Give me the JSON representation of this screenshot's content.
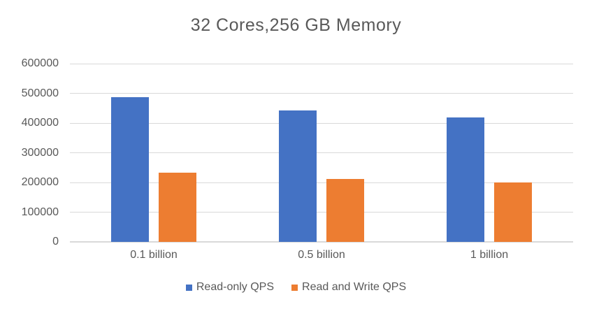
{
  "chart_data": {
    "type": "bar",
    "title": "32 Cores,256 GB Memory",
    "categories": [
      "0.1 billion",
      "0.5 billion",
      "1 billion"
    ],
    "series": [
      {
        "name": "Read-only QPS",
        "color": "#4472C4",
        "values": [
          488000,
          442000,
          419000
        ]
      },
      {
        "name": "Read and Write QPS",
        "color": "#ED7D31",
        "values": [
          233000,
          212000,
          199000
        ]
      }
    ],
    "xlabel": "",
    "ylabel": "",
    "ylim": [
      0,
      600000
    ],
    "ytick_interval": 100000,
    "yticks": [
      "0",
      "100000",
      "200000",
      "300000",
      "400000",
      "500000",
      "600000"
    ],
    "grid": true,
    "legend_position": "bottom"
  },
  "colors": {
    "series1": "#4472C4",
    "series2": "#ED7D31",
    "text": "#595959",
    "gridline": "#D9D9D9",
    "background": "#FFFFFF"
  }
}
